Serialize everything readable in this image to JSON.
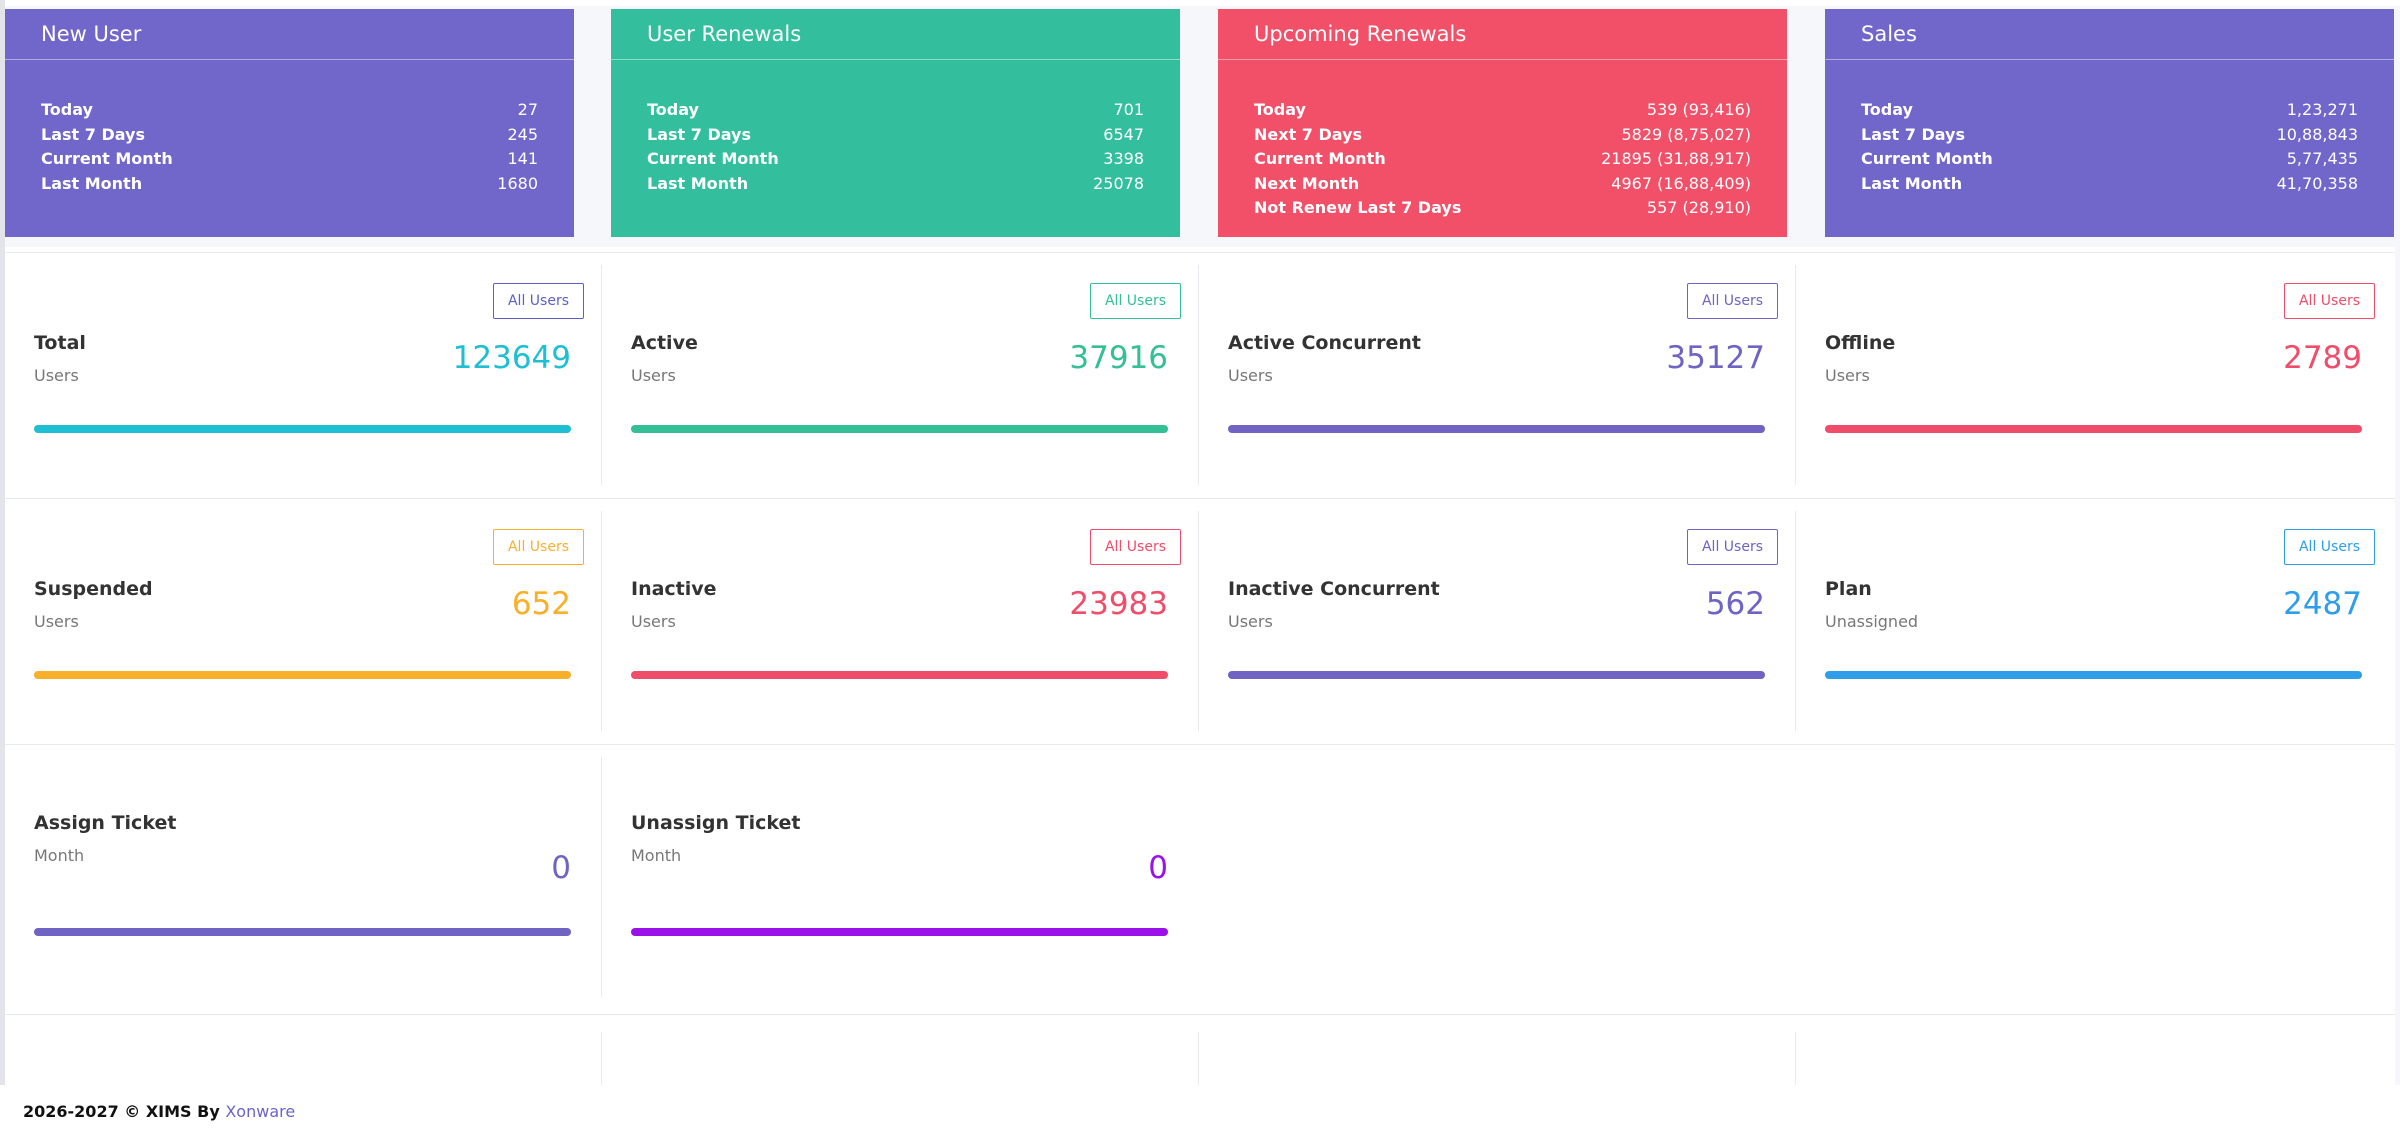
{
  "colors": {
    "purple": "#7166c9",
    "teal": "#33bf9d",
    "red": "#f15068",
    "cyan": "#1ebfd3",
    "green": "#34bf97",
    "indigo": "#6f63c3",
    "pink": "#ef4d69",
    "orange": "#f8b02a",
    "blue": "#2f9ee8",
    "violet": "#9a11ea"
  },
  "summary": [
    {
      "title": "New User",
      "rows": [
        {
          "k": "Today",
          "v": "27"
        },
        {
          "k": "Last 7 Days",
          "v": "245"
        },
        {
          "k": "Current Month",
          "v": "141"
        },
        {
          "k": "Last Month",
          "v": "1680"
        }
      ]
    },
    {
      "title": "User Renewals",
      "rows": [
        {
          "k": "Today",
          "v": "701"
        },
        {
          "k": "Last 7 Days",
          "v": "6547"
        },
        {
          "k": "Current Month",
          "v": "3398"
        },
        {
          "k": "Last Month",
          "v": "25078"
        }
      ]
    },
    {
      "title": "Upcoming Renewals",
      "rows": [
        {
          "k": "Today",
          "v": "539 (93,416)"
        },
        {
          "k": "Next 7 Days",
          "v": "5829 (8,75,027)"
        },
        {
          "k": "Current Month",
          "v": "21895 (31,88,917)"
        },
        {
          "k": "Next Month",
          "v": "4967 (16,88,409)"
        },
        {
          "k": "Not Renew Last 7 Days",
          "v": "557 (28,910)"
        }
      ]
    },
    {
      "title": "Sales",
      "rows": [
        {
          "k": "Today",
          "v": "1,23,271"
        },
        {
          "k": "Last 7 Days",
          "v": "10,88,843"
        },
        {
          "k": "Current Month",
          "v": "5,77,435"
        },
        {
          "k": "Last Month",
          "v": "41,70,358"
        }
      ]
    }
  ],
  "stats": [
    {
      "title": "Total",
      "sub": "Users",
      "value": "123649",
      "button": "All Users"
    },
    {
      "title": "Active",
      "sub": "Users",
      "value": "37916",
      "button": "All Users"
    },
    {
      "title": "Active Concurrent",
      "sub": "Users",
      "value": "35127",
      "button": "All Users"
    },
    {
      "title": "Offline",
      "sub": "Users",
      "value": "2789",
      "button": "All Users"
    },
    {
      "title": "Suspended",
      "sub": "Users",
      "value": "652",
      "button": "All Users"
    },
    {
      "title": "Inactive",
      "sub": "Users",
      "value": "23983",
      "button": "All Users"
    },
    {
      "title": "Inactive Concurrent",
      "sub": "Users",
      "value": "562",
      "button": "All Users"
    },
    {
      "title": "Plan",
      "sub": "Unassigned",
      "value": "2487",
      "button": "All Users"
    },
    {
      "title": "Assign Ticket",
      "sub": "Month",
      "value": "0"
    },
    {
      "title": "Unassign Ticket",
      "sub": "Month",
      "value": "0"
    }
  ],
  "footer": {
    "text": "2026-2027 © XIMS By ",
    "brand": "Xonware"
  }
}
